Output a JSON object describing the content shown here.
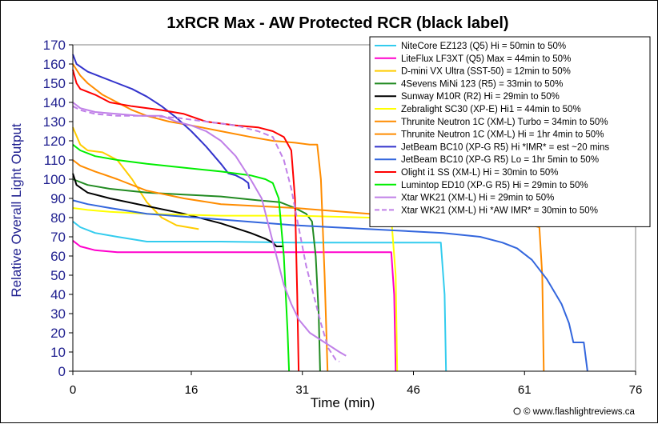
{
  "chart_data": {
    "type": "line",
    "title": "1xRCR Max - AW Protected RCR (black label)",
    "xlabel": "Time (min)",
    "ylabel": "Relative Overall Light Output",
    "xlim": [
      0,
      76
    ],
    "ylim": [
      0,
      170
    ],
    "xticks": [
      0,
      16,
      31,
      46,
      61,
      76
    ],
    "yticks": [
      0,
      10,
      20,
      30,
      40,
      50,
      60,
      70,
      80,
      90,
      100,
      110,
      120,
      130,
      140,
      150,
      160,
      170
    ],
    "grid": false,
    "legend_position": "top-right",
    "credit": "© www.flashlightreviews.ca",
    "series": [
      {
        "name": "NiteCore EZ123 (Q5) Hi = 50min to 50%",
        "color": "#33CCEE",
        "dash": false,
        "points": [
          [
            0,
            78
          ],
          [
            1,
            75
          ],
          [
            3,
            72
          ],
          [
            6,
            70
          ],
          [
            10,
            67.5
          ],
          [
            20,
            67.5
          ],
          [
            30,
            67
          ],
          [
            49,
            67
          ],
          [
            49.7,
            67
          ],
          [
            50.2,
            40
          ],
          [
            50.4,
            0
          ]
        ]
      },
      {
        "name": "LiteFlux LF3XT (Q5) Max = 44min to 50%",
        "color": "#FF00CC",
        "dash": false,
        "points": [
          [
            0,
            68
          ],
          [
            1,
            65
          ],
          [
            3,
            63
          ],
          [
            6,
            62
          ],
          [
            10,
            62
          ],
          [
            20,
            62
          ],
          [
            30,
            62
          ],
          [
            42,
            62
          ],
          [
            43,
            62
          ],
          [
            43.4,
            40
          ],
          [
            43.6,
            0
          ]
        ]
      },
      {
        "name": "D-mini VX Ultra (SST-50) = 12min to 50%",
        "color": "#FFCC00",
        "dash": false,
        "points": [
          [
            0,
            127
          ],
          [
            1,
            118
          ],
          [
            2,
            115
          ],
          [
            4,
            114
          ],
          [
            6,
            110
          ],
          [
            8,
            100
          ],
          [
            10,
            88
          ],
          [
            12,
            80
          ],
          [
            14,
            76
          ],
          [
            17,
            74
          ]
        ]
      },
      {
        "name": "4Sevens MiNi 123 (R5) = 33min to 50%",
        "color": "#228B22",
        "dash": false,
        "points": [
          [
            0,
            100
          ],
          [
            2,
            97
          ],
          [
            5,
            95
          ],
          [
            10,
            93
          ],
          [
            15,
            92
          ],
          [
            20,
            91
          ],
          [
            25,
            89
          ],
          [
            28,
            88
          ],
          [
            30,
            85
          ],
          [
            31.5,
            82
          ],
          [
            32.3,
            78
          ],
          [
            32.8,
            60
          ],
          [
            33.2,
            30
          ],
          [
            33.4,
            0
          ]
        ]
      },
      {
        "name": "Sunway M10R (R2) Hi = 29min to 50%",
        "color": "#000000",
        "dash": false,
        "points": [
          [
            0,
            103
          ],
          [
            0.5,
            97
          ],
          [
            2,
            93
          ],
          [
            5,
            90
          ],
          [
            10,
            86
          ],
          [
            15,
            82
          ],
          [
            20,
            77
          ],
          [
            24,
            72
          ],
          [
            26,
            69
          ],
          [
            27,
            67
          ],
          [
            27.5,
            65
          ],
          [
            28.5,
            65
          ]
        ]
      },
      {
        "name": "Zebralight SC30 (XP-E) Hi1 = 44min to 50%",
        "color": "#FFFF00",
        "dash": false,
        "points": [
          [
            0,
            85
          ],
          [
            2,
            84
          ],
          [
            5,
            83
          ],
          [
            10,
            82
          ],
          [
            20,
            81
          ],
          [
            30,
            81
          ],
          [
            40,
            80
          ],
          [
            43,
            80
          ],
          [
            43.6,
            50
          ],
          [
            43.8,
            0
          ]
        ]
      },
      {
        "name": "Thrunite Neutron 1C (XM-L) Turbo = 34min to 50%",
        "color": "#FF8C00",
        "dash": false,
        "points": [
          [
            0,
            160
          ],
          [
            1,
            154
          ],
          [
            2,
            150
          ],
          [
            4,
            144
          ],
          [
            6,
            140
          ],
          [
            8,
            136
          ],
          [
            10,
            133
          ],
          [
            13,
            130
          ],
          [
            16,
            128
          ],
          [
            20,
            125
          ],
          [
            24,
            122
          ],
          [
            27,
            120
          ],
          [
            30,
            119
          ],
          [
            32,
            118
          ],
          [
            33,
            118
          ],
          [
            33.5,
            100
          ],
          [
            34,
            50
          ],
          [
            34.4,
            0
          ]
        ]
      },
      {
        "name": "Thrunite Neutron 1C (XM-L) Hi = 1hr 4min to 50%",
        "color": "#FF8C00",
        "dash": false,
        "points": [
          [
            0,
            110
          ],
          [
            1,
            107
          ],
          [
            3,
            104
          ],
          [
            6,
            100
          ],
          [
            10,
            94
          ],
          [
            15,
            90
          ],
          [
            20,
            87
          ],
          [
            30,
            85
          ],
          [
            40,
            82
          ],
          [
            50,
            80
          ],
          [
            58,
            78
          ],
          [
            61,
            77
          ],
          [
            62,
            76
          ],
          [
            63,
            75
          ],
          [
            63.4,
            50
          ],
          [
            63.6,
            0
          ]
        ]
      },
      {
        "name": "JetBeam BC10 (XP-G R5) Hi *IMR* = est ~20 mins",
        "color": "#3333CC",
        "dash": false,
        "points": [
          [
            0,
            165
          ],
          [
            0.5,
            160
          ],
          [
            2,
            156
          ],
          [
            4,
            153
          ],
          [
            6,
            150
          ],
          [
            8,
            147
          ],
          [
            10,
            143
          ],
          [
            12,
            138
          ],
          [
            14,
            132
          ],
          [
            16,
            125
          ],
          [
            18,
            117
          ],
          [
            20,
            108
          ],
          [
            21,
            103
          ],
          [
            22,
            102
          ],
          [
            23,
            100
          ],
          [
            23.7,
            98
          ],
          [
            23.8,
            95
          ]
        ]
      },
      {
        "name": "JetBeam BC10 (XP-G R5) Lo = 1hr 5min to 50%",
        "color": "#3366DD",
        "dash": false,
        "points": [
          [
            0,
            89
          ],
          [
            2,
            87
          ],
          [
            5,
            85
          ],
          [
            10,
            82
          ],
          [
            20,
            79
          ],
          [
            30,
            76
          ],
          [
            40,
            74
          ],
          [
            50,
            72
          ],
          [
            55,
            70
          ],
          [
            58,
            67
          ],
          [
            60,
            64
          ],
          [
            62,
            58
          ],
          [
            64,
            48
          ],
          [
            66,
            35
          ],
          [
            67,
            25
          ],
          [
            67.6,
            15
          ],
          [
            69,
            15
          ],
          [
            69.5,
            0
          ]
        ]
      },
      {
        "name": "Olight i1 SS (XM-L) Hi = 30min to 50%",
        "color": "#FF0000",
        "dash": false,
        "points": [
          [
            0,
            157
          ],
          [
            0.5,
            150
          ],
          [
            1,
            147
          ],
          [
            3,
            144
          ],
          [
            5,
            140
          ],
          [
            8,
            138
          ],
          [
            12,
            136
          ],
          [
            15,
            134
          ],
          [
            18,
            130
          ],
          [
            22,
            128
          ],
          [
            25,
            127
          ],
          [
            27,
            125
          ],
          [
            28.5,
            122
          ],
          [
            29.5,
            115
          ],
          [
            30,
            90
          ],
          [
            30.3,
            40
          ],
          [
            30.5,
            0
          ]
        ]
      },
      {
        "name": "Lumintop ED10 (XP-G R5) Hi = 29min to 50%",
        "color": "#00EE00",
        "dash": false,
        "points": [
          [
            0,
            118
          ],
          [
            1,
            115
          ],
          [
            3,
            112
          ],
          [
            6,
            110
          ],
          [
            10,
            108
          ],
          [
            15,
            106
          ],
          [
            20,
            104
          ],
          [
            24,
            102
          ],
          [
            26,
            100
          ],
          [
            27,
            98
          ],
          [
            27.8,
            90
          ],
          [
            28.5,
            60
          ],
          [
            29,
            20
          ],
          [
            29.2,
            0
          ]
        ]
      },
      {
        "name": "Xtar WK21 (XM-L) Hi = 29min to 50%",
        "color": "#C080E8",
        "dash": false,
        "points": [
          [
            0,
            140
          ],
          [
            1,
            137
          ],
          [
            3,
            135
          ],
          [
            6,
            134
          ],
          [
            9,
            133
          ],
          [
            12,
            133
          ],
          [
            14,
            130
          ],
          [
            16,
            128
          ],
          [
            18,
            125
          ],
          [
            20,
            120
          ],
          [
            22,
            112
          ],
          [
            24,
            100
          ],
          [
            25.5,
            90
          ],
          [
            26.5,
            75
          ],
          [
            27.5,
            60
          ],
          [
            28.5,
            45
          ],
          [
            29.5,
            35
          ],
          [
            30.5,
            27
          ],
          [
            32,
            20
          ],
          [
            34,
            15
          ],
          [
            36,
            10
          ],
          [
            36.9,
            8
          ]
        ]
      },
      {
        "name": "Xtar WK21 (XM-L) Hi *AW IMR* = 30min to 50%",
        "color": "#C080E8",
        "dash": true,
        "points": [
          [
            0,
            138
          ],
          [
            1,
            136
          ],
          [
            3,
            134
          ],
          [
            6,
            133
          ],
          [
            10,
            133
          ],
          [
            14,
            132
          ],
          [
            18,
            130
          ],
          [
            22,
            128
          ],
          [
            25,
            125
          ],
          [
            27,
            122
          ],
          [
            28.5,
            110
          ],
          [
            29.5,
            95
          ],
          [
            30.5,
            75
          ],
          [
            31.5,
            55
          ],
          [
            32.5,
            40
          ],
          [
            33.5,
            25
          ],
          [
            34.5,
            12
          ],
          [
            35.5,
            6
          ],
          [
            36,
            5
          ]
        ]
      }
    ]
  }
}
